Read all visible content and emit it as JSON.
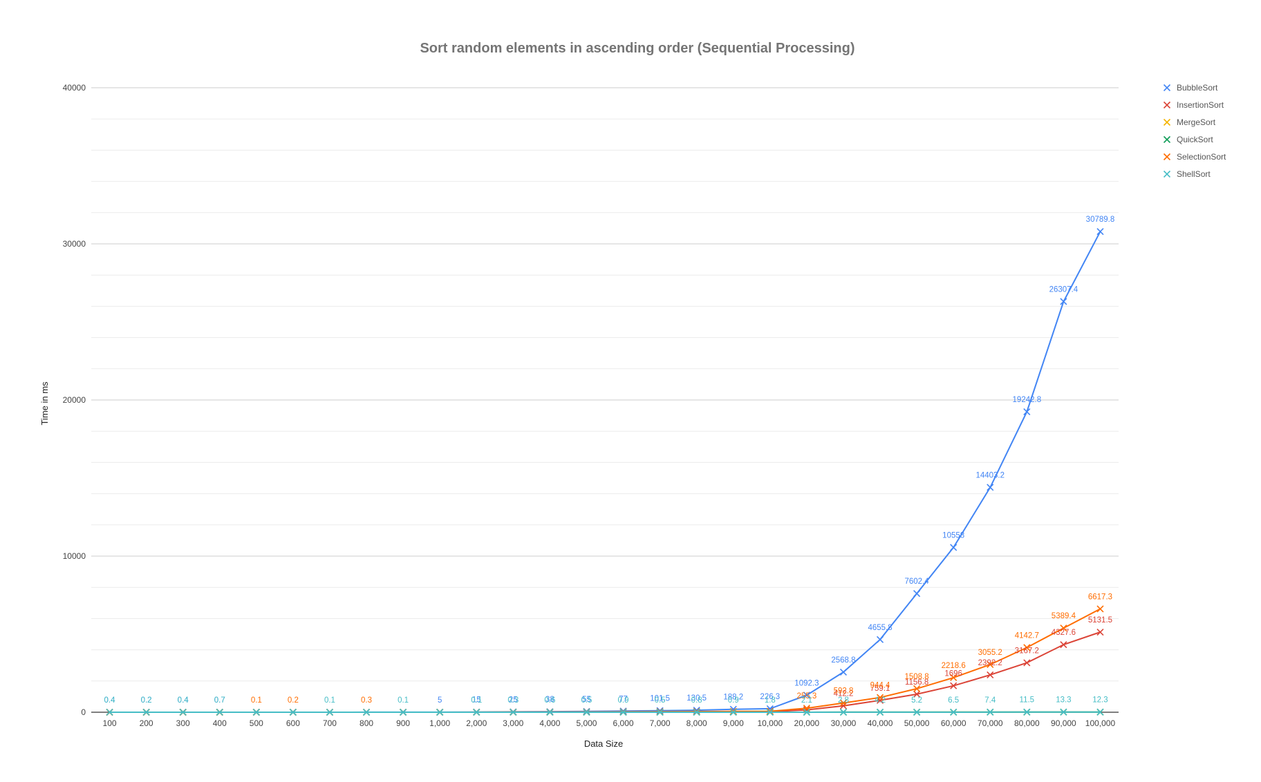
{
  "chart_data": {
    "type": "line",
    "title": "Sort random elements in ascending order (Sequential Processing)",
    "xlabel": "Data Size",
    "ylabel": "Time in ms",
    "categories": [
      "100",
      "200",
      "300",
      "400",
      "500",
      "600",
      "700",
      "800",
      "900",
      "1,000",
      "2,000",
      "3,000",
      "4,000",
      "5,000",
      "6,000",
      "7,000",
      "8,000",
      "9,000",
      "10,000",
      "20,000",
      "30,000",
      "40,000",
      "50,000",
      "60,000",
      "70,000",
      "80,000",
      "90,000",
      "100,000"
    ],
    "ylim": [
      0,
      40000
    ],
    "yticks": [
      0,
      10000,
      20000,
      30000,
      40000
    ],
    "grid": true,
    "legend_position": "right",
    "series": [
      {
        "name": "BubbleSort",
        "color": "#4285f4",
        "values": [
          0.4,
          0.2,
          0.4,
          0.7,
          1,
          2,
          1,
          3,
          4,
          5,
          15,
          25,
          38,
          55,
          77,
          101.5,
          130.5,
          188.2,
          226.3,
          1092.3,
          2568.8,
          4655.8,
          7602.4,
          10558,
          14403.2,
          19242.8,
          26307.4,
          30789.8
        ]
      },
      {
        "name": "InsertionSort",
        "color": "#db4437",
        "values": [
          0.1,
          0.1,
          0.1,
          0.2,
          0.3,
          0.4,
          0.5,
          0.6,
          0.6,
          0.8,
          2,
          4,
          7,
          10,
          14,
          18,
          23,
          29,
          36,
          150,
          412.2,
          759.1,
          1156.8,
          1696,
          2392.2,
          3167.2,
          4327.6,
          5131.5
        ]
      },
      {
        "name": "MergeSort",
        "color": "#f4b400",
        "values": [
          0.1,
          0.1,
          0.1,
          0.1,
          0.1,
          0.1,
          0.1,
          0.2,
          0.2,
          0.2,
          0.3,
          0.4,
          0.5,
          0.6,
          0.7,
          0.8,
          0.9,
          1,
          1.1,
          2.2,
          3.5,
          4.7,
          6,
          7.3,
          8.6,
          10,
          11.5,
          13
        ]
      },
      {
        "name": "QuickSort",
        "color": "#0f9d58",
        "values": [
          0.1,
          0.1,
          0.1,
          0.1,
          0.1,
          0.1,
          0.1,
          0.1,
          0.1,
          0.1,
          0.2,
          0.2,
          0.3,
          0.4,
          0.5,
          0.5,
          0.6,
          0.7,
          0.8,
          1.6,
          2.4,
          3.3,
          4.1,
          5,
          5.9,
          6.8,
          7.7,
          8.6
        ]
      },
      {
        "name": "SelectionSort",
        "color": "#ff6d01",
        "values": [
          0.1,
          0.1,
          0.1,
          0.1,
          0.1,
          0.2,
          0.3,
          0.3,
          0.4,
          0.5,
          3,
          7,
          12,
          18,
          26,
          35,
          44,
          51.8,
          61.8,
          255.3,
          592.8,
          944.4,
          1508.8,
          2218.6,
          3055.2,
          4142.7,
          5389.4,
          6617.3
        ]
      },
      {
        "name": "ShellSort",
        "color": "#46bdc6",
        "values": [
          0.4,
          0.2,
          0.4,
          0.7,
          0.1,
          0.1,
          0.1,
          0.1,
          0.1,
          0.1,
          0.1,
          0.3,
          0.6,
          0.5,
          0.9,
          0.5,
          0.8,
          0.9,
          1.8,
          2.1,
          2.8,
          4.2,
          5.2,
          6.5,
          7.4,
          11.5,
          13.3,
          12.3
        ]
      }
    ],
    "data_labels": [
      {
        "series": 0,
        "indices": [
          0,
          1,
          2,
          3,
          9,
          10,
          11,
          12,
          13,
          14,
          15,
          16,
          17,
          18,
          19,
          20,
          21,
          22,
          23,
          24,
          25,
          26,
          27
        ]
      },
      {
        "series": 1,
        "indices": [
          20,
          21,
          22,
          23,
          24,
          25,
          26,
          27
        ]
      },
      {
        "series": 4,
        "indices": [
          4,
          5,
          7,
          19,
          20,
          21,
          22,
          23,
          24,
          25,
          26,
          27
        ]
      },
      {
        "series": 5,
        "indices": [
          0,
          1,
          2,
          3,
          6,
          8,
          10,
          11,
          12,
          13,
          14,
          15,
          16,
          17,
          18,
          19,
          20,
          21,
          22,
          23,
          24,
          25,
          26,
          27
        ]
      }
    ]
  }
}
